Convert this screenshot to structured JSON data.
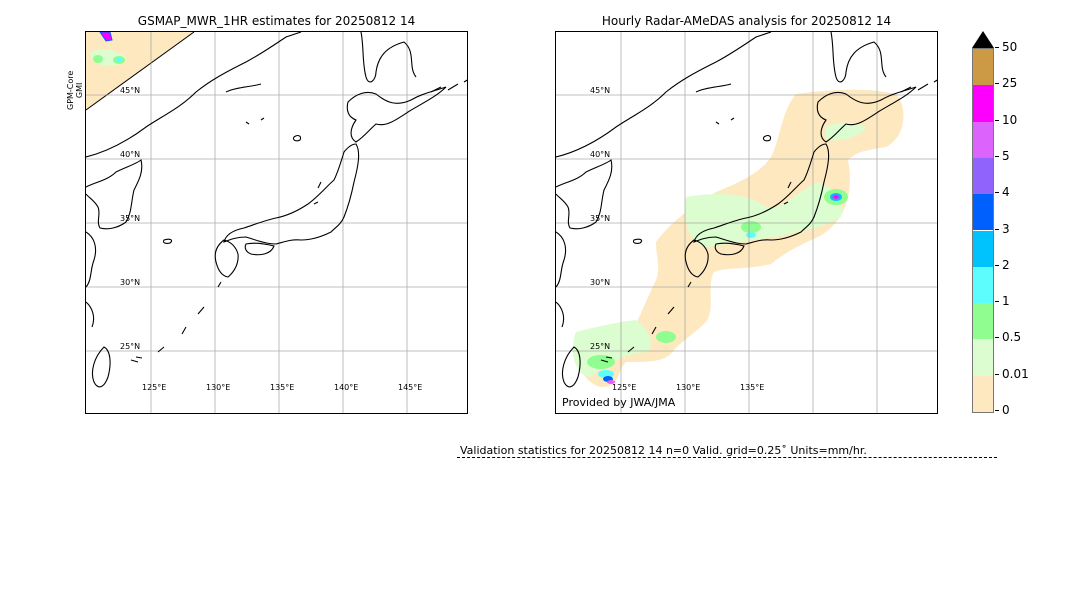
{
  "left_panel": {
    "title": "GSMAP_MWR_1HR estimates for 20250812 14",
    "satellite_label": [
      "GPM-Core",
      "GMI"
    ],
    "lat_labels": [
      "45°N",
      "40°N",
      "35°N",
      "30°N",
      "25°N"
    ],
    "lon_labels": [
      "125°E",
      "130°E",
      "135°E",
      "140°E",
      "145°E"
    ]
  },
  "right_panel": {
    "title": "Hourly Radar-AMeDAS analysis for 20250812 14",
    "lat_labels": [
      "45°N",
      "40°N",
      "35°N",
      "30°N",
      "25°N"
    ],
    "lon_labels": [
      "125°E",
      "130°E",
      "135°E"
    ],
    "credit": "Provided by JWA/JMA"
  },
  "colorbar": {
    "ticks": [
      "0",
      "0.01",
      "0.5",
      "1",
      "2",
      "3",
      "4",
      "5",
      "10",
      "25",
      "50"
    ],
    "colors": [
      "#fee8c0",
      "#dcfdd0",
      "#90fd90",
      "#5efdfd",
      "#00c3fd",
      "#0060fd",
      "#9163fd",
      "#dd63fd",
      "#fd00fd",
      "#cc9a44"
    ],
    "extend_color": "#000000"
  },
  "validation": {
    "text": "Validation statistics for 20250812 14  n=0 Valid. grid=0.25˚ Units=mm/hr."
  }
}
